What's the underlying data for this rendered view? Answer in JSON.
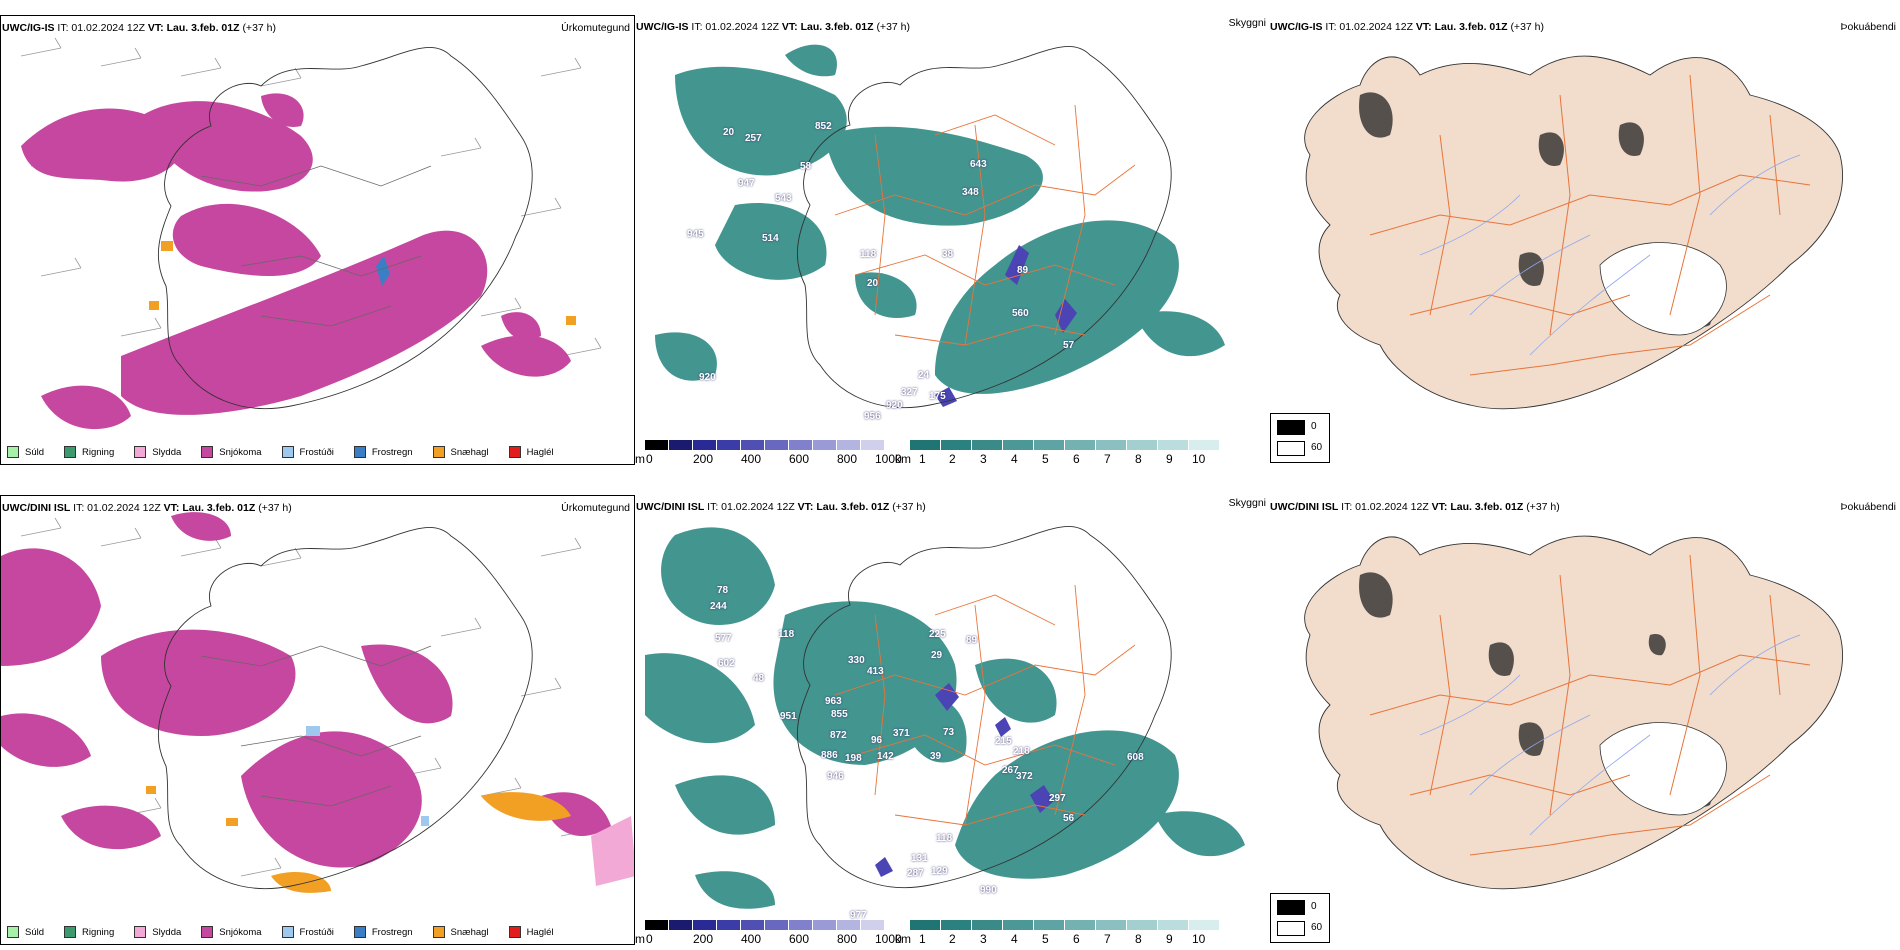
{
  "rows": [
    {
      "model": "UWC/IG-IS",
      "precip_title_rest": " IT: 01.02.2024 12Z ",
      "vt_label": "VT:",
      "vt_value": " Lau. 3.feb. 01Z ",
      "lead": "(+37 h)",
      "precip_type": "Úrkomutegund",
      "visibility_type": "Skyggni",
      "fog_type": "Þokuábendi",
      "visibility_values": [
        "852",
        "20",
        "257",
        "58",
        "947",
        "543",
        "643",
        "348",
        "945",
        "514",
        "38",
        "118",
        "20",
        "89",
        "560",
        "57",
        "920",
        "24",
        "327",
        "175",
        "920",
        "956"
      ]
    },
    {
      "model": "UWC/DINI ISL",
      "precip_title_rest": " IT: 01.02.2024 12Z ",
      "vt_label": "VT:",
      "vt_value": " Lau. 3.feb. 01Z ",
      "lead": "(+37 h)",
      "precip_type": "Úrkomutegund",
      "visibility_type": "Skyggni",
      "fog_type": "Þokuábendi",
      "visibility_values": [
        "78",
        "244",
        "577",
        "602",
        "48",
        "118",
        "225",
        "89",
        "29",
        "330",
        "413",
        "963",
        "951",
        "855",
        "872",
        "371",
        "96",
        "73",
        "215",
        "218",
        "886",
        "198",
        "142",
        "39",
        "267",
        "372",
        "946",
        "608",
        "297",
        "56",
        "118",
        "131",
        "287",
        "129",
        "990",
        "977"
      ]
    }
  ],
  "precip_legend": [
    {
      "label": "Súld",
      "color": "#a8f0a8"
    },
    {
      "label": "Rigning",
      "color": "#3b9b6e"
    },
    {
      "label": "Slydda",
      "color": "#f3a9d6"
    },
    {
      "label": "Snjókoma",
      "color": "#c6479f"
    },
    {
      "label": "Frostúði",
      "color": "#9fc8ee"
    },
    {
      "label": "Frostregn",
      "color": "#3a7fc6"
    },
    {
      "label": "Snæhagl",
      "color": "#f2a023"
    },
    {
      "label": "Haglél",
      "color": "#e51c1c"
    }
  ],
  "height_colorbar": {
    "unit": "m",
    "ticks": [
      "0",
      "200",
      "400",
      "600",
      "800",
      "1000"
    ],
    "colors": [
      "#000000",
      "#1a1a6e",
      "#2a2a96",
      "#3c3ca8",
      "#5050b4",
      "#6868c0",
      "#8080cc",
      "#9a9ad6",
      "#b4b4e0",
      "#d0d0ec"
    ]
  },
  "distance_colorbar": {
    "unit": "km",
    "ticks": [
      "1",
      "2",
      "3",
      "4",
      "5",
      "6",
      "7",
      "8",
      "9",
      "10"
    ],
    "colors": [
      "#1f7474",
      "#2b8080",
      "#3a8a8a",
      "#4c9898",
      "#5ea4a4",
      "#74b2b2",
      "#8cc0c0",
      "#a4cfcf",
      "#bcdddd",
      "#d8eded"
    ]
  },
  "fog_legend": {
    "high": "0",
    "low": "60",
    "high_color": "#000000",
    "low_color": "#ffffff"
  },
  "colors": {
    "snow": "#c6479f",
    "visibility": "#2f8a84",
    "land": "#f2dccb",
    "roads": "#e8743b",
    "rivers": "#8da8ef"
  }
}
